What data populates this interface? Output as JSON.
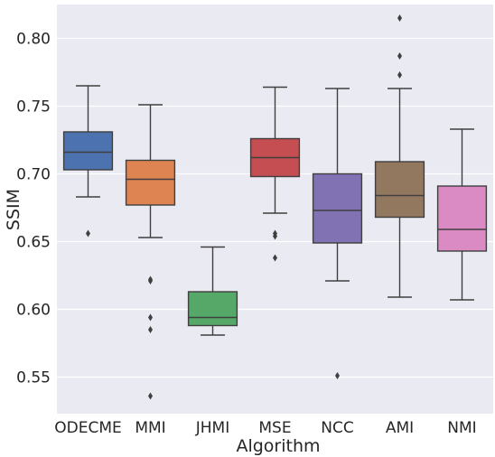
{
  "chart_data": {
    "type": "box",
    "xlabel": "Algorithm",
    "ylabel": "SSIM",
    "ylim": [
      0.523,
      0.825
    ],
    "yticks": [
      0.55,
      0.6,
      0.65,
      0.7,
      0.75,
      0.8
    ],
    "ytick_labels": [
      "0.55",
      "0.60",
      "0.65",
      "0.70",
      "0.75",
      "0.80"
    ],
    "grid": true,
    "background": "#eaeaf2",
    "categories": [
      "ODECME",
      "MMI",
      "JHMI",
      "MSE",
      "NCC",
      "AMI",
      "NMI"
    ],
    "boxes": [
      {
        "name": "ODECME",
        "color": "#4c72b0",
        "whisker_low": 0.683,
        "q1": 0.703,
        "median": 0.716,
        "q3": 0.731,
        "whisker_high": 0.765,
        "outliers": [
          0.656
        ]
      },
      {
        "name": "MMI",
        "color": "#dd8452",
        "whisker_low": 0.653,
        "q1": 0.677,
        "median": 0.696,
        "q3": 0.71,
        "whisker_high": 0.751,
        "outliers": [
          0.621,
          0.622,
          0.594,
          0.585,
          0.536
        ]
      },
      {
        "name": "JHMI",
        "color": "#55a868",
        "whisker_low": 0.581,
        "q1": 0.588,
        "median": 0.594,
        "q3": 0.613,
        "whisker_high": 0.646,
        "outliers": []
      },
      {
        "name": "MSE",
        "color": "#c44e52",
        "whisker_low": 0.671,
        "q1": 0.698,
        "median": 0.712,
        "q3": 0.726,
        "whisker_high": 0.764,
        "outliers": [
          0.656,
          0.654,
          0.638
        ]
      },
      {
        "name": "NCC",
        "color": "#8172b3",
        "whisker_low": 0.621,
        "q1": 0.649,
        "median": 0.673,
        "q3": 0.7,
        "whisker_high": 0.763,
        "outliers": [
          0.551
        ]
      },
      {
        "name": "AMI",
        "color": "#937860",
        "whisker_low": 0.609,
        "q1": 0.668,
        "median": 0.684,
        "q3": 0.709,
        "whisker_high": 0.763,
        "outliers": [
          0.815,
          0.787,
          0.773
        ]
      },
      {
        "name": "NMI",
        "color": "#da8bc3",
        "whisker_low": 0.607,
        "q1": 0.643,
        "median": 0.659,
        "q3": 0.691,
        "whisker_high": 0.733,
        "outliers": []
      }
    ]
  }
}
